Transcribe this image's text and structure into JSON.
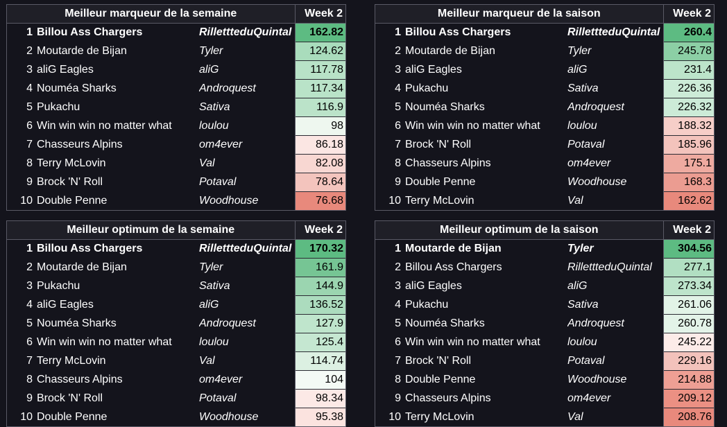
{
  "tables": [
    {
      "title": "Meilleur marqueur de la semaine",
      "week": "Week 2",
      "rows": [
        {
          "rank": "1",
          "team": "Billou Ass Chargers",
          "owner": "RillettteduQuintal",
          "score": "162.82",
          "color": "#5dbb82"
        },
        {
          "rank": "2",
          "team": "Moutarde de Bijan",
          "owner": "Tyler",
          "score": "124.62",
          "color": "#a9dcbc"
        },
        {
          "rank": "3",
          "team": "aliG Eagles",
          "owner": "aliG",
          "score": "117.78",
          "color": "#b8e2c7"
        },
        {
          "rank": "4",
          "team": "Nouméa Sharks",
          "owner": "Androquest",
          "score": "117.34",
          "color": "#b9e3c8"
        },
        {
          "rank": "5",
          "team": "Pukachu",
          "owner": "Sativa",
          "score": "116.9",
          "color": "#bbe3c9"
        },
        {
          "rank": "6",
          "team": "Win win win no matter what",
          "owner": "loulou",
          "score": "98",
          "color": "#eef7ef"
        },
        {
          "rank": "7",
          "team": "Chasseurs Alpins",
          "owner": "om4ever",
          "score": "86.18",
          "color": "#fbe6e3"
        },
        {
          "rank": "8",
          "team": "Terry McLovin",
          "owner": "Val",
          "score": "82.08",
          "color": "#f8d7d2"
        },
        {
          "rank": "9",
          "team": "Brock 'N' Roll",
          "owner": "Potaval",
          "score": "78.64",
          "color": "#f3c4bd"
        },
        {
          "rank": "10",
          "team": "Double Penne",
          "owner": "Woodhouse",
          "score": "76.68",
          "color": "#e8897c"
        }
      ]
    },
    {
      "title": "Meilleur marqueur de la saison",
      "week": "Week 2",
      "rows": [
        {
          "rank": "1",
          "team": "Billou Ass Chargers",
          "owner": "RillettteduQuintal",
          "score": "260.4",
          "color": "#5dbb82"
        },
        {
          "rank": "2",
          "team": "Moutarde de Bijan",
          "owner": "Tyler",
          "score": "245.78",
          "color": "#8ccfa5"
        },
        {
          "rank": "3",
          "team": "aliG Eagles",
          "owner": "aliG",
          "score": "231.4",
          "color": "#bce4ca"
        },
        {
          "rank": "4",
          "team": "Pukachu",
          "owner": "Sativa",
          "score": "226.36",
          "color": "#ccebd7"
        },
        {
          "rank": "5",
          "team": "Nouméa Sharks",
          "owner": "Androquest",
          "score": "226.32",
          "color": "#ccebd7"
        },
        {
          "rank": "6",
          "team": "Win win win no matter what",
          "owner": "loulou",
          "score": "188.32",
          "color": "#f6cec8"
        },
        {
          "rank": "7",
          "team": "Brock 'N' Roll",
          "owner": "Potaval",
          "score": "185.96",
          "color": "#f3c3bc"
        },
        {
          "rank": "8",
          "team": "Chasseurs Alpins",
          "owner": "om4ever",
          "score": "175.1",
          "color": "#eeaaa0"
        },
        {
          "rank": "9",
          "team": "Double Penne",
          "owner": "Woodhouse",
          "score": "168.3",
          "color": "#eb9c91"
        },
        {
          "rank": "10",
          "team": "Terry McLovin",
          "owner": "Val",
          "score": "162.62",
          "color": "#e8897c"
        }
      ]
    },
    {
      "title": "Meilleur optimum de la semaine",
      "week": "Week 2",
      "rows": [
        {
          "rank": "1",
          "team": "Billou Ass Chargers",
          "owner": "RillettteduQuintal",
          "score": "170.32",
          "color": "#5dbb82"
        },
        {
          "rank": "2",
          "team": "Moutarde de Bijan",
          "owner": "Tyler",
          "score": "161.9",
          "color": "#76c594"
        },
        {
          "rank": "3",
          "team": "Pukachu",
          "owner": "Sativa",
          "score": "144.9",
          "color": "#9bd5b0"
        },
        {
          "rank": "4",
          "team": "aliG Eagles",
          "owner": "aliG",
          "score": "136.52",
          "color": "#acdcbe"
        },
        {
          "rank": "5",
          "team": "Nouméa Sharks",
          "owner": "Androquest",
          "score": "127.9",
          "color": "#bfe5cc"
        },
        {
          "rank": "6",
          "team": "Win win win no matter what",
          "owner": "loulou",
          "score": "125.4",
          "color": "#c5e7d1"
        },
        {
          "rank": "7",
          "team": "Terry McLovin",
          "owner": "Val",
          "score": "114.74",
          "color": "#dcf0e2"
        },
        {
          "rank": "8",
          "team": "Chasseurs Alpins",
          "owner": "om4ever",
          "score": "104",
          "color": "#f4faf5"
        },
        {
          "rank": "9",
          "team": "Brock 'N' Roll",
          "owner": "Potaval",
          "score": "98.34",
          "color": "#fce9e6"
        },
        {
          "rank": "10",
          "team": "Double Penne",
          "owner": "Woodhouse",
          "score": "95.38",
          "color": "#fbe3df"
        }
      ]
    },
    {
      "title": "Meilleur optimum de la saison",
      "week": "Week 2",
      "rows": [
        {
          "rank": "1",
          "team": "Moutarde de Bijan",
          "owner": "Tyler",
          "score": "304.56",
          "color": "#5dbb82"
        },
        {
          "rank": "2",
          "team": "Billou Ass Chargers",
          "owner": "RillettteduQuintal",
          "score": "277.1",
          "color": "#b1dfc2"
        },
        {
          "rank": "3",
          "team": "aliG Eagles",
          "owner": "aliG",
          "score": "273.34",
          "color": "#bde4cb"
        },
        {
          "rank": "4",
          "team": "Pukachu",
          "owner": "Sativa",
          "score": "261.06",
          "color": "#e2f3e7"
        },
        {
          "rank": "5",
          "team": "Nouméa Sharks",
          "owner": "Androquest",
          "score": "260.78",
          "color": "#e3f3e8"
        },
        {
          "rank": "6",
          "team": "Win win win no matter what",
          "owner": "loulou",
          "score": "245.22",
          "color": "#fcebe8"
        },
        {
          "rank": "7",
          "team": "Brock 'N' Roll",
          "owner": "Potaval",
          "score": "229.16",
          "color": "#f3c2bb"
        },
        {
          "rank": "8",
          "team": "Double Penne",
          "owner": "Woodhouse",
          "score": "214.88",
          "color": "#ee9f94"
        },
        {
          "rank": "9",
          "team": "Chasseurs Alpins",
          "owner": "om4ever",
          "score": "209.12",
          "color": "#eb9083"
        },
        {
          "rank": "10",
          "team": "Terry McLovin",
          "owner": "Val",
          "score": "208.76",
          "color": "#e8897c"
        }
      ]
    }
  ]
}
